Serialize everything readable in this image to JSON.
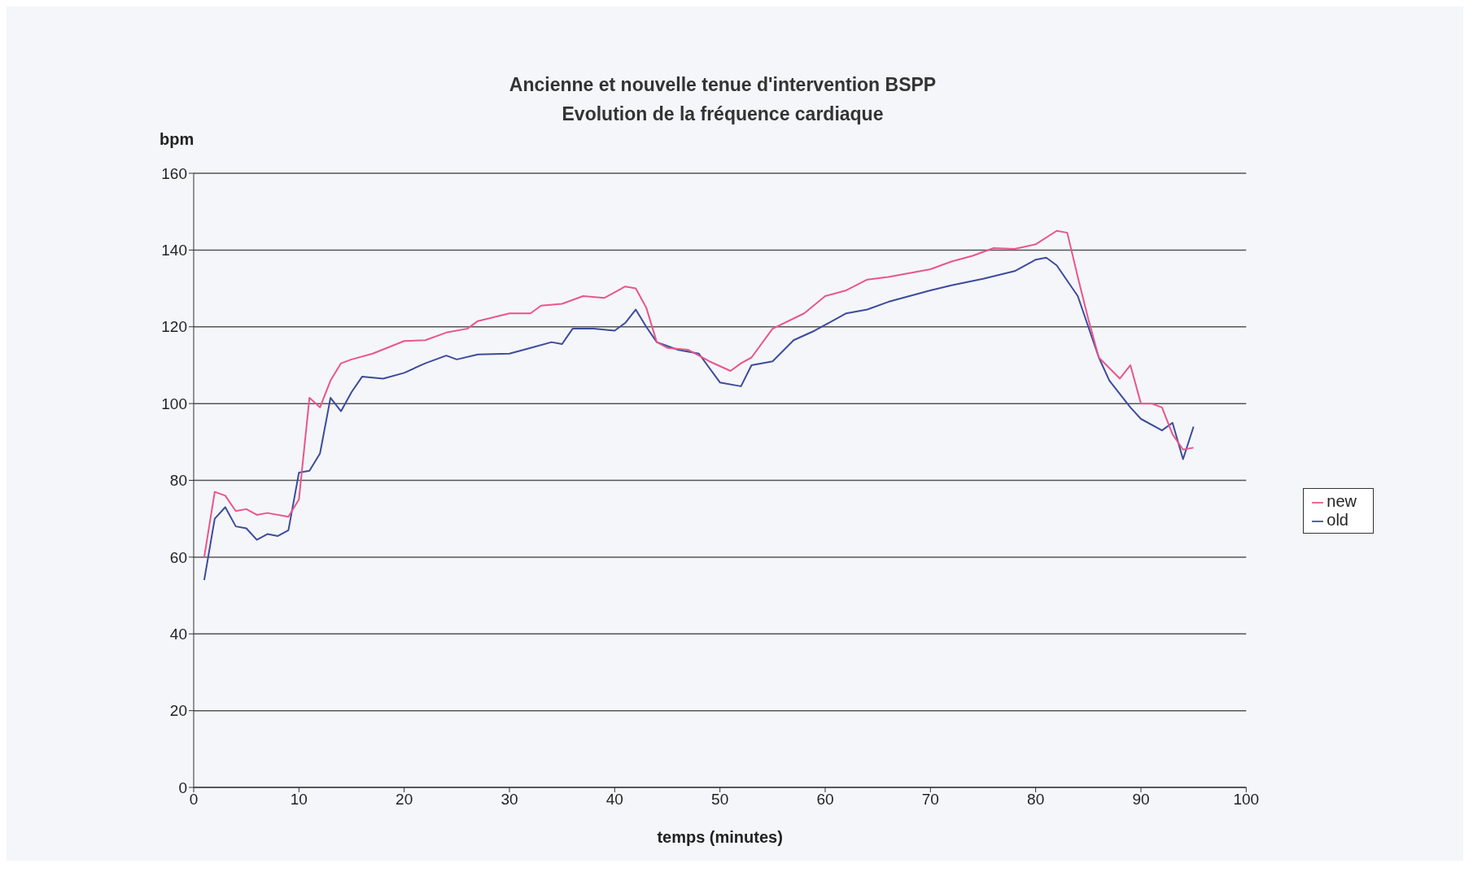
{
  "chart_data": {
    "type": "line",
    "title": "Ancienne et nouvelle tenue d'intervention BSPP",
    "subtitle": "Evolution de la fréquence cardiaque",
    "xlabel": "temps (minutes)",
    "ylabel": "bpm",
    "xlim": [
      0,
      100
    ],
    "xticks": [
      0,
      10,
      20,
      30,
      40,
      50,
      60,
      70,
      80,
      90,
      100
    ],
    "ylim": [
      0,
      160
    ],
    "yticks": [
      0,
      20,
      40,
      60,
      80,
      100,
      120,
      140,
      160
    ],
    "grid": "y",
    "legend": "right",
    "marker": "none",
    "line_style": "solid",
    "series": [
      {
        "name": "old",
        "color": "#3c4b9c",
        "x": [
          1,
          2,
          3,
          4,
          5,
          6,
          7,
          8,
          9,
          10,
          11,
          12,
          13,
          14,
          15,
          16,
          18,
          20,
          22,
          24,
          25,
          27,
          30,
          32,
          34,
          35,
          36,
          38,
          40,
          41,
          42,
          43,
          44,
          46,
          48,
          50,
          52,
          53,
          55,
          57,
          59,
          60,
          62,
          64,
          66,
          68,
          70,
          72,
          75,
          78,
          80,
          81,
          82,
          84,
          86,
          87,
          88,
          89,
          90,
          92,
          93,
          94,
          95
        ],
        "values": [
          54,
          70,
          73,
          68,
          67.5,
          64.5,
          66,
          65.5,
          67,
          82,
          82.5,
          87,
          101.5,
          98,
          103,
          107,
          106.5,
          108,
          110.5,
          112.5,
          111.5,
          112.8,
          113,
          114.5,
          116,
          115.5,
          119.5,
          119.5,
          119,
          121,
          124.5,
          120,
          116,
          114,
          113,
          105.5,
          104.5,
          110,
          111,
          116.5,
          119,
          120.5,
          123.5,
          124.5,
          126.5,
          128,
          129.5,
          130.8,
          132.5,
          134.5,
          137.5,
          138,
          136,
          128,
          112,
          106,
          102.5,
          99,
          96,
          93,
          95,
          85.5,
          94
        ]
      },
      {
        "name": "new",
        "color": "#e8568a",
        "x": [
          1,
          2,
          3,
          4,
          5,
          6,
          7,
          9,
          10,
          11,
          12,
          13,
          14,
          15,
          17,
          20,
          22,
          24,
          26,
          27,
          30,
          32,
          33,
          35,
          37,
          39,
          41,
          42,
          43,
          44,
          45,
          47,
          49,
          51,
          52,
          53,
          55,
          58,
          60,
          62,
          64,
          66,
          68,
          70,
          72,
          74,
          76,
          78,
          80,
          82,
          83,
          84,
          85,
          86,
          88,
          89,
          90,
          91,
          92,
          93,
          94,
          95
        ],
        "values": [
          60,
          77,
          76,
          72,
          72.5,
          71,
          71.5,
          70.5,
          75,
          101.5,
          99,
          106,
          110.5,
          111.5,
          113,
          116.3,
          116.5,
          118.5,
          119.5,
          121.5,
          123.5,
          123.5,
          125.5,
          126,
          128,
          127.5,
          130.5,
          130,
          125,
          116,
          114.5,
          114,
          111,
          108.5,
          110.5,
          112,
          119.5,
          123.5,
          128,
          129.5,
          132.3,
          133,
          134,
          135,
          137,
          138.5,
          140.5,
          140.3,
          141.5,
          145,
          144.5,
          133,
          122,
          112,
          106.5,
          110,
          100,
          100,
          99,
          92,
          88,
          88.5
        ]
      }
    ]
  }
}
